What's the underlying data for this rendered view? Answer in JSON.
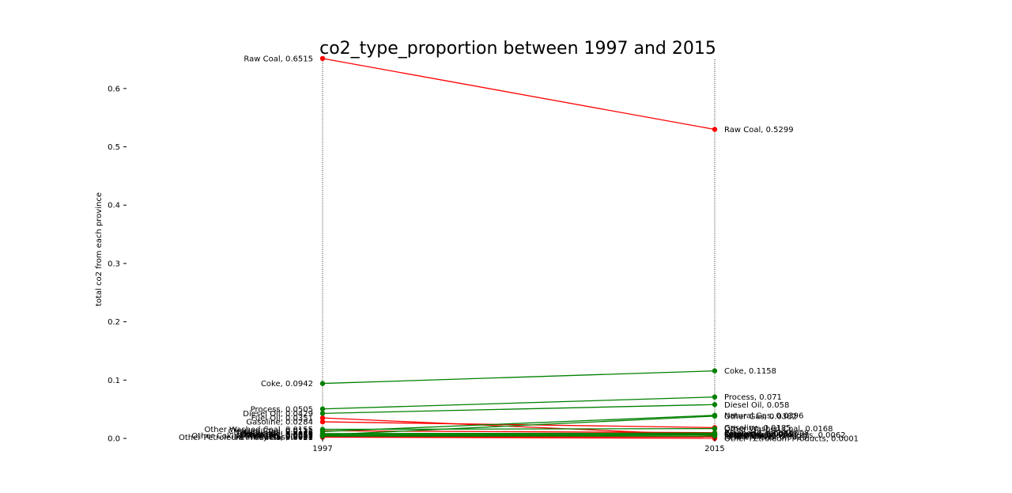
{
  "colors": {
    "increase": "#008000",
    "decrease": "#ff0000"
  },
  "chart_data": {
    "type": "line",
    "title": "co2_type_proportion between 1997 and 2015",
    "xlabel": "",
    "ylabel": "total co2 from each province",
    "x": [
      "1997",
      "2015"
    ],
    "ylim": [
      0,
      0.65
    ],
    "yticks": [
      "0.0",
      "0.1",
      "0.2",
      "0.3",
      "0.4",
      "0.5",
      "0.6"
    ],
    "series": [
      {
        "name": "Raw Coal",
        "values": [
          0.6515,
          0.5299
        ]
      },
      {
        "name": "Coke",
        "values": [
          0.0942,
          0.1158
        ]
      },
      {
        "name": "Process",
        "values": [
          0.0505,
          0.071
        ]
      },
      {
        "name": "Diesel Oil",
        "values": [
          0.0429,
          0.058
        ]
      },
      {
        "name": "Natural Gas",
        "values": [
          0.0118,
          0.0396
        ]
      },
      {
        "name": "Other Gas",
        "values": [
          0.0059,
          0.0382
        ]
      },
      {
        "name": "Fuel Oil",
        "values": [
          0.0351,
          0.0052
        ]
      },
      {
        "name": "Gasoline",
        "values": [
          0.0284,
          0.0185
        ]
      },
      {
        "name": "Other Washed Coal",
        "values": [
          0.0155,
          0.0168
        ]
      },
      {
        "name": "Cleaned Coal",
        "values": [
          0.0131,
          0.0098
        ]
      },
      {
        "name": "Kerosene",
        "values": [
          0.0082,
          0.0091
        ]
      },
      {
        "name": "Crude Oil",
        "values": [
          0.0071,
          0.0072
        ]
      },
      {
        "name": "Briquettes",
        "values": [
          0.0053,
          0.0067
        ]
      },
      {
        "name": "Other Coking Products",
        "values": [
          0.0045,
          0.0062
        ]
      },
      {
        "name": "LPG",
        "values": [
          0.0037,
          0.0041
        ]
      },
      {
        "name": "Refinery Gas",
        "values": [
          0.003,
          0.0025
        ]
      },
      {
        "name": "Other Petroleum Products",
        "values": [
          0.0021,
          0.0001
        ]
      }
    ]
  }
}
